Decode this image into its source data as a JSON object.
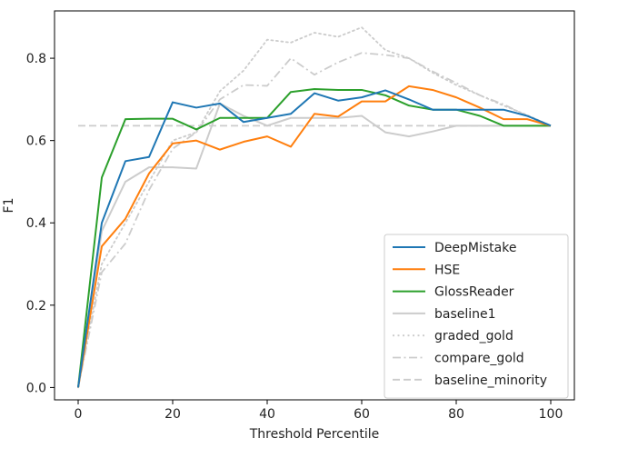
{
  "chart_data": {
    "type": "line",
    "title": "",
    "xlabel": "Threshold Percentile",
    "ylabel": "F1",
    "xlim": [
      -5,
      105
    ],
    "ylim": [
      -0.03,
      0.915
    ],
    "xticks": [
      0,
      20,
      40,
      60,
      80,
      100
    ],
    "yticks": [
      0.0,
      0.2,
      0.4,
      0.6,
      0.8
    ],
    "ytick_labels": [
      "0.0",
      "0.2",
      "0.4",
      "0.6",
      "0.8"
    ],
    "grid": false,
    "legend_position": "lower-right",
    "x": [
      0,
      5,
      10,
      15,
      20,
      25,
      30,
      35,
      40,
      45,
      50,
      55,
      60,
      65,
      70,
      75,
      80,
      85,
      90,
      95,
      100
    ],
    "series": [
      {
        "name": "DeepMistake",
        "color": "#1f77b4",
        "style": "solid",
        "values": [
          0.0,
          0.4,
          0.55,
          0.56,
          0.693,
          0.68,
          0.69,
          0.645,
          0.655,
          0.665,
          0.715,
          0.697,
          0.705,
          0.722,
          0.7,
          0.675,
          0.675,
          0.675,
          0.675,
          0.66,
          0.636
        ]
      },
      {
        "name": "HSE",
        "color": "#ff7f0e",
        "style": "solid",
        "values": [
          0.0,
          0.343,
          0.41,
          0.52,
          0.593,
          0.6,
          0.578,
          0.597,
          0.61,
          0.585,
          0.665,
          0.658,
          0.695,
          0.695,
          0.732,
          0.723,
          0.705,
          0.68,
          0.652,
          0.652,
          0.636
        ]
      },
      {
        "name": "GlossReader",
        "color": "#2ca02c",
        "style": "solid",
        "values": [
          0.0,
          0.51,
          0.652,
          0.653,
          0.653,
          0.627,
          0.655,
          0.655,
          0.655,
          0.718,
          0.725,
          0.723,
          0.723,
          0.71,
          0.685,
          0.675,
          0.675,
          0.66,
          0.636,
          0.636,
          0.636
        ]
      },
      {
        "name": "baseline1",
        "color": "#cccccc",
        "style": "solid",
        "values": [
          0.0,
          0.38,
          0.5,
          0.535,
          0.535,
          0.532,
          0.69,
          0.66,
          0.636,
          0.655,
          0.655,
          0.655,
          0.66,
          0.62,
          0.61,
          0.622,
          0.636,
          0.636,
          0.636,
          0.636,
          0.636
        ]
      },
      {
        "name": "graded_gold",
        "color": "#cccccc",
        "style": "dotted",
        "values": [
          0.0,
          0.3,
          0.4,
          0.5,
          0.6,
          0.62,
          0.72,
          0.77,
          0.845,
          0.838,
          0.862,
          0.852,
          0.875,
          0.82,
          0.8,
          0.765,
          0.735,
          0.71,
          0.685,
          0.662,
          0.636
        ]
      },
      {
        "name": "compare_gold",
        "color": "#cccccc",
        "style": "dashdot",
        "values": [
          0.0,
          0.28,
          0.35,
          0.48,
          0.58,
          0.62,
          0.7,
          0.735,
          0.733,
          0.8,
          0.76,
          0.79,
          0.813,
          0.808,
          0.8,
          0.768,
          0.74,
          0.71,
          0.688,
          0.66,
          0.636
        ]
      },
      {
        "name": "baseline_minority",
        "color": "#cccccc",
        "style": "dashed",
        "values": [
          0.636,
          0.636,
          0.636,
          0.636,
          0.636,
          0.636,
          0.636,
          0.636,
          0.636,
          0.636,
          0.636,
          0.636,
          0.636,
          0.636,
          0.636,
          0.636,
          0.636,
          0.636,
          0.636,
          0.636,
          0.636
        ]
      }
    ]
  }
}
